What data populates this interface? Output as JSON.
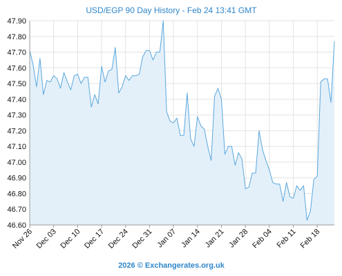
{
  "chart_data": {
    "type": "area",
    "title": "USD/EGP 90 Day History - Feb 24 13:41 GMT",
    "xlabel": "",
    "ylabel": "",
    "y_ticks": [
      "47.90",
      "47.80",
      "47.70",
      "47.60",
      "47.50",
      "47.40",
      "47.30",
      "47.20",
      "47.10",
      "47.00",
      "46.90",
      "46.80",
      "46.70",
      "46.60"
    ],
    "ylim": [
      46.6,
      47.9
    ],
    "x_ticks": [
      "Nov 26",
      "Dec 03",
      "Dec 10",
      "Dec 17",
      "Dec 24",
      "Dec 31",
      "Jan 07",
      "Jan 14",
      "Jan 21",
      "Jan 28",
      "Feb 04",
      "Feb 11",
      "Feb 18"
    ],
    "grid": true,
    "legend": "none",
    "colors": {
      "line": "#5aa7dc",
      "fill": "#e3f0fa",
      "grid": "#e3e3e3",
      "axis": "#9a9a9a",
      "title": "#2f86c9"
    },
    "series": [
      {
        "values": [
          47.71,
          47.62,
          47.48,
          47.66,
          47.43,
          47.52,
          47.51,
          47.55,
          47.53,
          47.47,
          47.57,
          47.51,
          47.46,
          47.55,
          47.56,
          47.5,
          47.54,
          47.54,
          47.35,
          47.43,
          47.37,
          47.61,
          47.51,
          47.58,
          47.59,
          47.73,
          47.44,
          47.48,
          47.55,
          47.52,
          47.55,
          47.55,
          47.56,
          47.67,
          47.71,
          47.71,
          47.65,
          47.7,
          47.7,
          47.9,
          47.32,
          47.26,
          47.25,
          47.28,
          47.17,
          47.17,
          47.44,
          47.15,
          47.1,
          47.29,
          47.23,
          47.21,
          47.1,
          47.01,
          47.42,
          47.47,
          47.4,
          47.05,
          47.1,
          47.1,
          46.98,
          47.06,
          47.02,
          46.83,
          46.84,
          46.93,
          46.93,
          47.2,
          47.08,
          47.01,
          46.95,
          46.87,
          46.86,
          46.86,
          46.75,
          46.87,
          46.78,
          46.77,
          46.85,
          46.82,
          46.85,
          46.63,
          46.69,
          46.89,
          46.91,
          47.51,
          47.53,
          47.53,
          47.38,
          47.77
        ]
      }
    ]
  },
  "footer": {
    "text": "2026 © Exchangerates.org.uk"
  }
}
